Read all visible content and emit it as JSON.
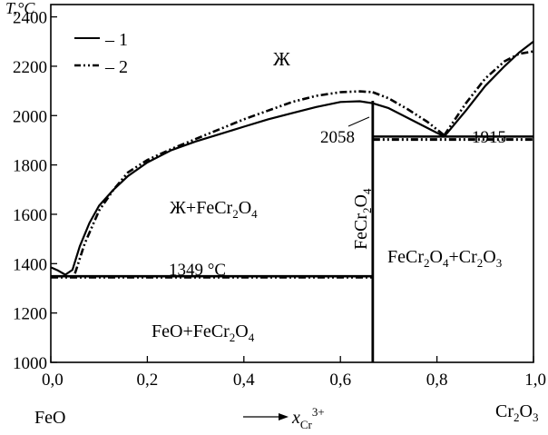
{
  "chart_data": {
    "type": "line",
    "title": "",
    "xlabel": "x",
    "xlabel_sub": "Cr",
    "xlabel_sup": "3+",
    "ylabel": "T,°C",
    "xlim": [
      0,
      1
    ],
    "ylim": [
      1000,
      2450
    ],
    "grid": false,
    "legend_position": "top-left",
    "x_ticks": [
      {
        "value": 0,
        "label": "0,0"
      },
      {
        "value": 0.2,
        "label": "0,2"
      },
      {
        "value": 0.4,
        "label": "0,4"
      },
      {
        "value": 0.6,
        "label": "0,6"
      },
      {
        "value": 0.8,
        "label": "0,8"
      },
      {
        "value": 1.0,
        "label": "1,0"
      }
    ],
    "y_ticks": [
      {
        "value": 1000,
        "label": "1000"
      },
      {
        "value": 1200,
        "label": "1200"
      },
      {
        "value": 1400,
        "label": "1400"
      },
      {
        "value": 1600,
        "label": "1600"
      },
      {
        "value": 1800,
        "label": "1800"
      },
      {
        "value": 2000,
        "label": "2000"
      },
      {
        "value": 2200,
        "label": "2200"
      },
      {
        "value": 2400,
        "label": "2400"
      }
    ],
    "end_labels": {
      "left": "FeO",
      "right_main": "Cr",
      "right_sub1": "2",
      "right_rest": "O",
      "right_sub2": "3"
    },
    "legend": [
      {
        "label": "– 1",
        "style": "solid"
      },
      {
        "label": "– 2",
        "style": "dash-dot-dot"
      }
    ],
    "series": [
      {
        "name": "1",
        "style": "solid",
        "segments": [
          {
            "x": [
              0.0,
              0.015,
              0.03,
              0.045,
              0.06,
              0.08,
              0.1,
              0.13,
              0.16,
              0.2,
              0.25,
              0.3,
              0.35,
              0.4,
              0.45,
              0.5,
              0.55,
              0.6,
              0.64,
              0.667
            ],
            "y": [
              1385,
              1372,
              1355,
              1375,
              1470,
              1565,
              1635,
              1700,
              1755,
              1810,
              1860,
              1895,
              1925,
              1955,
              1985,
              2010,
              2035,
              2055,
              2058,
              2050
            ]
          },
          {
            "x": [
              0.667,
              0.7,
              0.74,
              0.78,
              0.815
            ],
            "y": [
              2050,
              2030,
              1990,
              1950,
              1915
            ]
          },
          {
            "x": [
              0.815,
              0.86,
              0.9,
              0.94,
              0.97,
              1.0
            ],
            "y": [
              1915,
              2020,
              2120,
              2200,
              2255,
              2300
            ]
          }
        ],
        "horizontal_lines": [
          {
            "x": [
              0.0,
              0.667
            ],
            "y": 1349
          },
          {
            "x": [
              0.667,
              1.0
            ],
            "y": 1915
          }
        ]
      },
      {
        "name": "2",
        "style": "dash-dot-dot",
        "segments": [
          {
            "x": [
              0.05,
              0.07,
              0.1,
              0.13,
              0.16,
              0.2,
              0.25,
              0.3,
              0.35,
              0.4,
              0.45,
              0.5,
              0.55,
              0.6,
              0.64,
              0.667
            ],
            "y": [
              1360,
              1480,
              1615,
              1700,
              1770,
              1820,
              1865,
              1905,
              1945,
              1985,
              2020,
              2055,
              2080,
              2095,
              2098,
              2095
            ]
          },
          {
            "x": [
              0.667,
              0.7,
              0.74,
              0.78,
              0.815
            ],
            "y": [
              2095,
              2070,
              2025,
              1975,
              1920
            ]
          },
          {
            "x": [
              0.815,
              0.86,
              0.9,
              0.94,
              0.97,
              1.0
            ],
            "y": [
              1920,
              2050,
              2150,
              2220,
              2250,
              2260
            ]
          }
        ],
        "horizontal_lines": [
          {
            "x": [
              0.0,
              0.667
            ],
            "y": 1345
          },
          {
            "x": [
              0.667,
              1.0
            ],
            "y": 1903
          }
        ]
      }
    ],
    "compound_line": {
      "x": 0.667,
      "y_from": 1000,
      "y_to": 2060
    },
    "annotations": {
      "liquid": "Ж",
      "liquid_plus": "Ж+",
      "fecr2o4_a": "FeCr",
      "fecr2o4_b": "2",
      "fecr2o4_c": "O",
      "fecr2o4_d": "4",
      "feo_plus": "FeO+",
      "cr2o3_a": "+Cr",
      "cr2o3_b": "2",
      "cr2o3_c": "O",
      "cr2o3_d": "3",
      "t1349": "1349 °C",
      "t2058": "2058",
      "t1915": "1915"
    }
  }
}
